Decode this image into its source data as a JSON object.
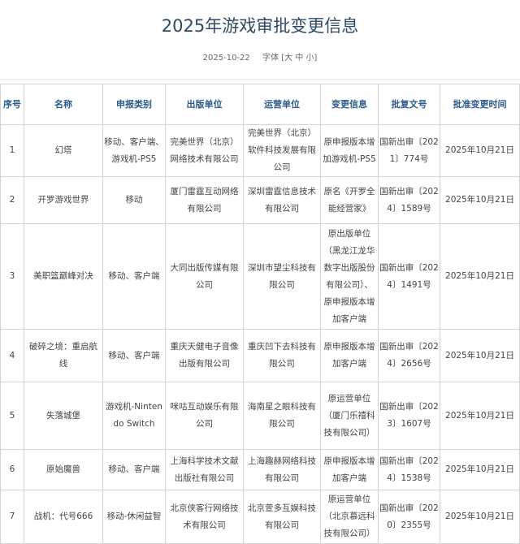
{
  "page": {
    "title": "2025年游戏审批变更信息",
    "date": "2025-10-22",
    "font_label": "字体",
    "font_sizes": [
      "[大",
      "中",
      "小]"
    ]
  },
  "colors": {
    "title": "#2c4a68",
    "header_text": "#2b5b8c",
    "border": "#d4d4d4"
  },
  "table": {
    "headers": [
      "序号",
      "名称",
      "申报类别",
      "出版单位",
      "运营单位",
      "变更信息",
      "批复文号",
      "批准变更时间"
    ],
    "rows": [
      [
        "1",
        "幻塔",
        "移动、客户端、游戏机-PS5",
        "完美世界（北京）网络技术有限公司",
        "完美世界（北京）软件科技发展有限公司",
        "原申报版本增加游戏机-PS5",
        "国新出审〔2021〕774号",
        "2025年10月21日"
      ],
      [
        "2",
        "开罗游戏世界",
        "移动",
        "厦门雷霆互动网络有限公司",
        "深圳雷霆信息技术有限公司",
        "原名《开罗全能经营家》",
        "国新出审〔2024〕1589号",
        "2025年10月21日"
      ],
      [
        "3",
        "美职篮巅峰对决",
        "移动、客户端",
        "大同出版传媒有限公司",
        "深圳市望尘科技有限公司",
        "原出版单位（黑龙江龙华数字出版股份有限公司）、原申报版本增加客户端",
        "国新出审〔2024〕1491号",
        "2025年10月21日"
      ],
      [
        "4",
        "破碎之境：重启航线",
        "移动、客户端",
        "重庆天健电子音像出版有限公司",
        "重庆凹下去科技有限公司",
        "原申报版本增加客户端",
        "国新出审〔2024〕2656号",
        "2025年10月21日"
      ],
      [
        "5",
        "失落城堡",
        "游戏机-Nintendo Switch",
        "咪咕互动娱乐有限公司",
        "海南星之眼科技有限公司",
        "原运营单位（厦门乐禧科技有限公司）",
        "国新出审〔2023〕1607号",
        "2025年10月21日"
      ],
      [
        "6",
        "原始魔兽",
        "移动、客户端",
        "上海科学技术文献出版社有限公司",
        "上海趣赫网络科技有限公司",
        "原申报版本增加客户端",
        "国新出审〔2024〕1538号",
        "2025年10月21日"
      ],
      [
        "7",
        "战机：代号666",
        "移动-休闲益智",
        "北京侠客行网络技术有限公司",
        "北京萱多互娱科技有限公司",
        "原运营单位（北京慕远科技有限公司）",
        "国新出审〔2020〕2355号",
        "2025年10月21日"
      ]
    ]
  }
}
